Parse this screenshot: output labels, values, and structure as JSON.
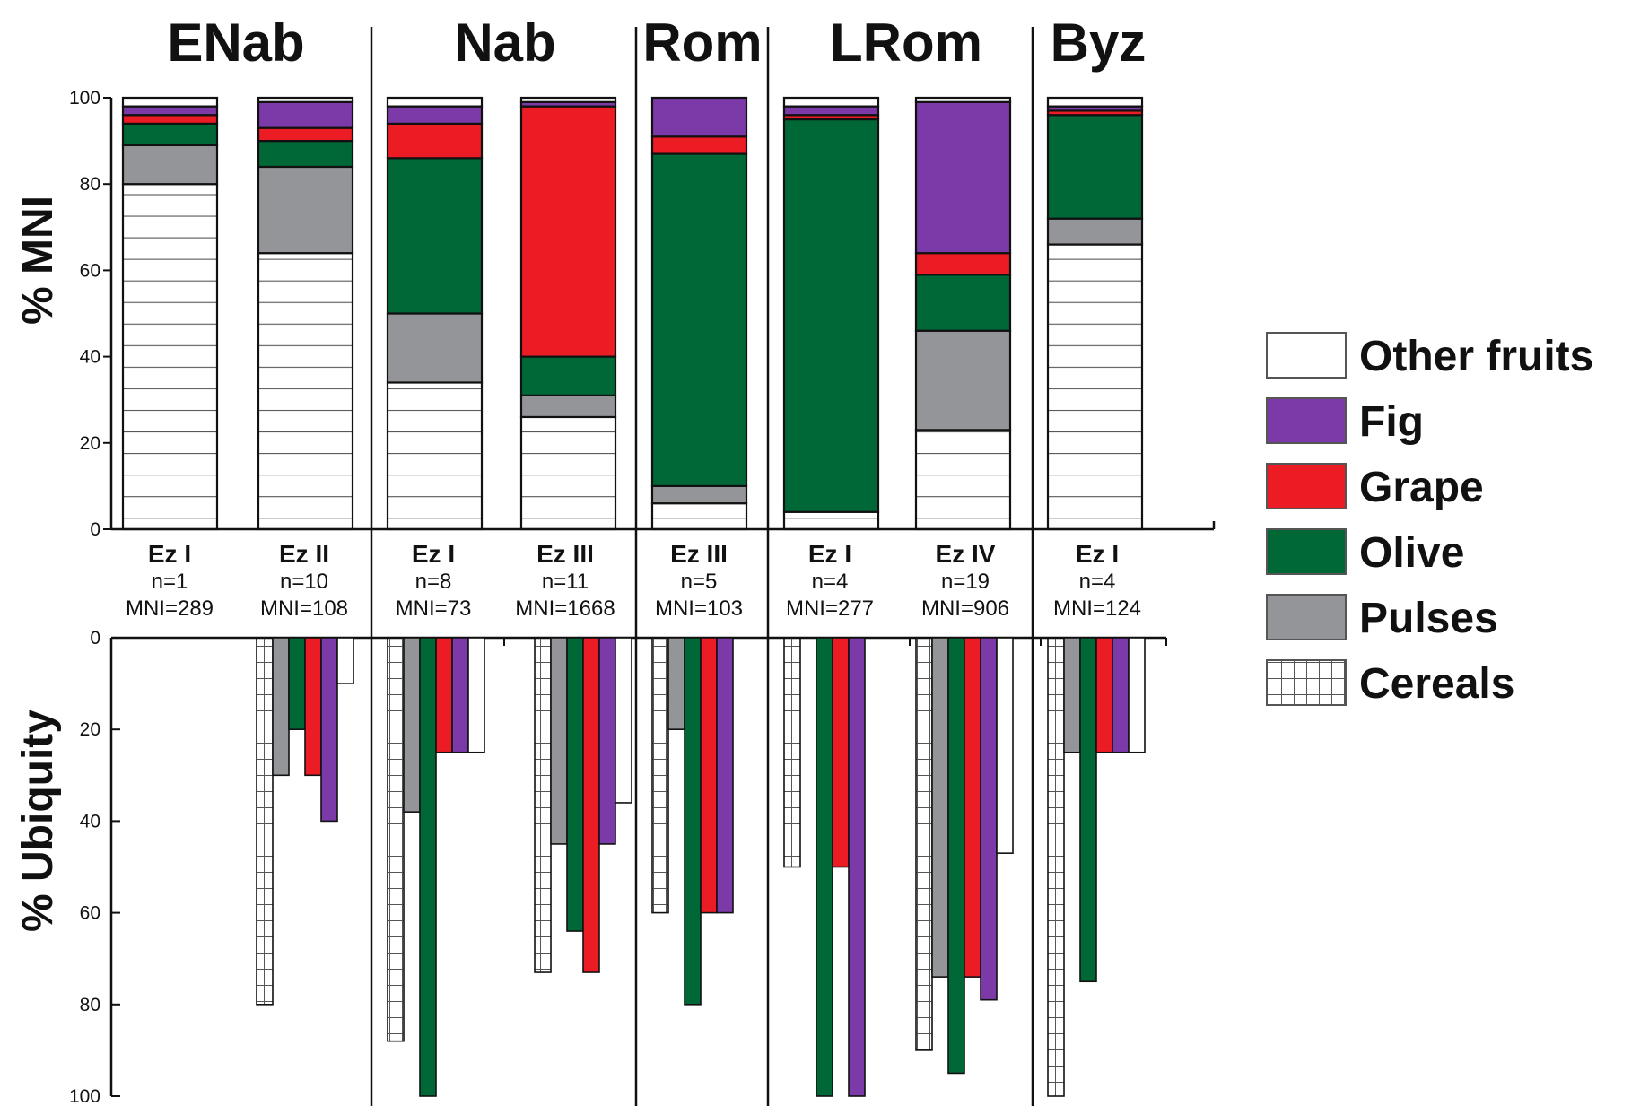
{
  "colors": {
    "Other fruits": "#ffffff",
    "Fig": "#7c3aa8",
    "Grape": "#ec1c24",
    "Olive": "#006837",
    "Pulses": "#939598",
    "Cereals": "#ffffff",
    "stroke": "#111111",
    "hatch": "#555555"
  },
  "chart_data": [
    {
      "type": "bar",
      "subtype": "stacked-percent",
      "ylabel": "% MNI",
      "ylim": [
        0,
        100
      ],
      "yticks": [
        "0",
        "20",
        "40",
        "60",
        "80",
        "100"
      ],
      "legend": [
        "Other fruits",
        "Fig",
        "Grape",
        "Olive",
        "Pulses",
        "Cereals"
      ],
      "legend_position": "right",
      "periods": [
        "ENab",
        "Nab",
        "Rom",
        "LRom",
        "Byz"
      ],
      "categories": [
        {
          "period": "ENab",
          "site": "Ez I",
          "n": "n=1",
          "mni": "MNI=289"
        },
        {
          "period": "ENab",
          "site": "Ez II",
          "n": "n=10",
          "mni": "MNI=108"
        },
        {
          "period": "Nab",
          "site": "Ez I",
          "n": "n=8",
          "mni": "MNI=73"
        },
        {
          "period": "Nab",
          "site": "Ez III",
          "n": "n=11",
          "mni": "MNI=1668"
        },
        {
          "period": "Rom",
          "site": "Ez III",
          "n": "n=5",
          "mni": "MNI=103"
        },
        {
          "period": "LRom",
          "site": "Ez I",
          "n": "n=4",
          "mni": "MNI=277"
        },
        {
          "period": "LRom",
          "site": "Ez IV",
          "n": "n=19",
          "mni": "MNI=906"
        },
        {
          "period": "Byz",
          "site": "Ez I",
          "n": "n=4",
          "mni": "MNI=124"
        }
      ],
      "series": [
        {
          "name": "Cereals",
          "values": [
            80,
            64,
            34,
            26,
            6,
            4,
            23,
            66
          ]
        },
        {
          "name": "Pulses",
          "values": [
            9,
            20,
            16,
            5,
            4,
            0,
            23,
            6
          ]
        },
        {
          "name": "Olive",
          "values": [
            5,
            6,
            36,
            9,
            77,
            91,
            13,
            24
          ]
        },
        {
          "name": "Grape",
          "values": [
            2,
            3,
            8,
            58,
            4,
            1,
            5,
            1
          ]
        },
        {
          "name": "Fig",
          "values": [
            2,
            6,
            4,
            1,
            9,
            2,
            35,
            1
          ]
        },
        {
          "name": "Other fruits",
          "values": [
            2,
            1,
            2,
            1,
            0,
            2,
            1,
            2
          ]
        }
      ]
    },
    {
      "type": "bar",
      "subtype": "inverted-grouped",
      "ylabel": "% Ubiquity",
      "ylim": [
        0,
        100
      ],
      "yticks": [
        "0",
        "20",
        "40",
        "60",
        "80",
        "100"
      ],
      "series": [
        {
          "name": "Cereals",
          "values": [
            0,
            80,
            88,
            73,
            60,
            50,
            90,
            100
          ]
        },
        {
          "name": "Pulses",
          "values": [
            0,
            30,
            38,
            45,
            20,
            0,
            74,
            25
          ]
        },
        {
          "name": "Olive",
          "values": [
            0,
            20,
            100,
            64,
            80,
            100,
            95,
            75
          ]
        },
        {
          "name": "Grape",
          "values": [
            0,
            30,
            25,
            73,
            60,
            50,
            74,
            25
          ]
        },
        {
          "name": "Fig",
          "values": [
            0,
            40,
            25,
            45,
            60,
            100,
            79,
            25
          ]
        },
        {
          "name": "Other fruits",
          "values": [
            0,
            10,
            25,
            36,
            0,
            0,
            47,
            25
          ]
        }
      ]
    }
  ]
}
